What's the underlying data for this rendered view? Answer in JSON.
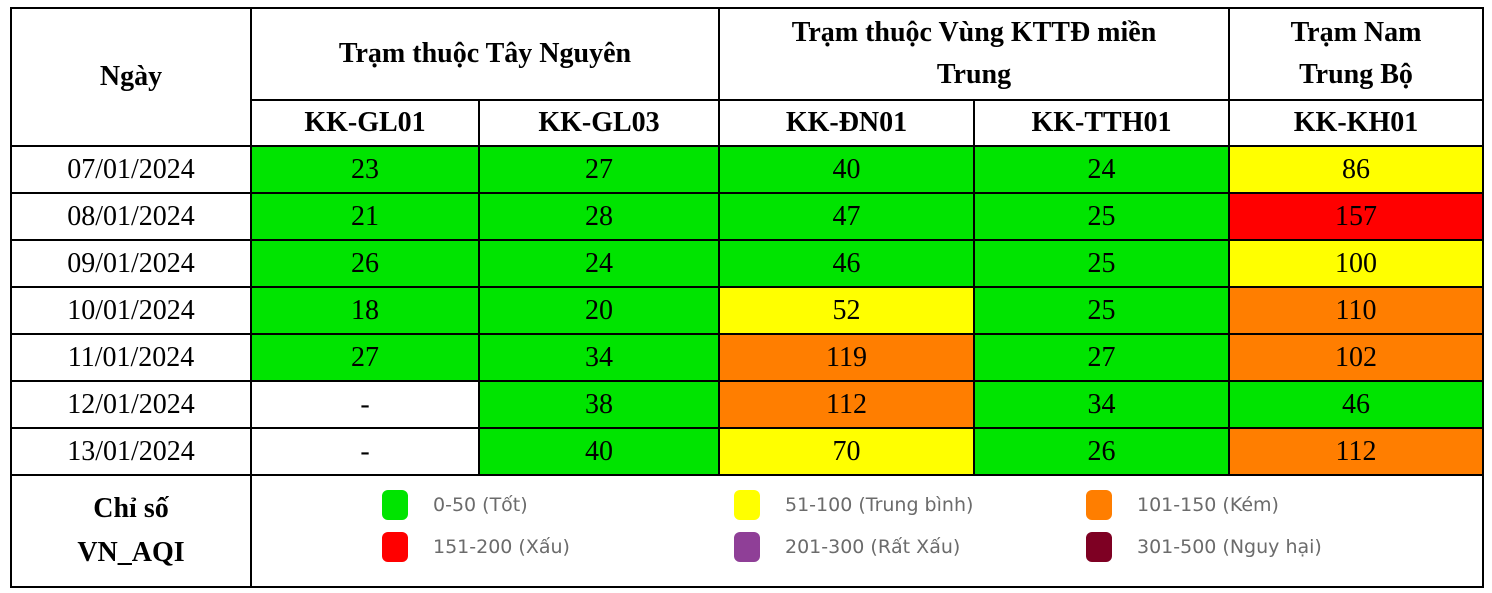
{
  "colors": {
    "good": "#00e400",
    "moderate": "#ffff00",
    "poor": "#ff7e00",
    "bad": "#ff0000",
    "very_bad": "#8f3f97",
    "hazardous": "#7e0023",
    "empty": "#ffffff"
  },
  "header": {
    "date_label": "Ngày",
    "groups": [
      {
        "label": "Trạm thuộc Tây Nguyên"
      },
      {
        "label": "Trạm thuộc Vùng KTTĐ miền Trung"
      },
      {
        "label": "Trạm Nam Trung Bộ"
      }
    ],
    "stations": [
      "KK-GL01",
      "KK-GL03",
      "KK-ĐN01",
      "KK-TTH01",
      "KK-KH01"
    ]
  },
  "rows": [
    {
      "date": "07/01/2024",
      "values": [
        "23",
        "27",
        "40",
        "24",
        "86"
      ],
      "levels": [
        "good",
        "good",
        "good",
        "good",
        "moderate"
      ]
    },
    {
      "date": "08/01/2024",
      "values": [
        "21",
        "28",
        "47",
        "25",
        "157"
      ],
      "levels": [
        "good",
        "good",
        "good",
        "good",
        "bad"
      ]
    },
    {
      "date": "09/01/2024",
      "values": [
        "26",
        "24",
        "46",
        "25",
        "100"
      ],
      "levels": [
        "good",
        "good",
        "good",
        "good",
        "moderate"
      ]
    },
    {
      "date": "10/01/2024",
      "values": [
        "18",
        "20",
        "52",
        "25",
        "110"
      ],
      "levels": [
        "good",
        "good",
        "moderate",
        "good",
        "poor"
      ]
    },
    {
      "date": "11/01/2024",
      "values": [
        "27",
        "34",
        "119",
        "27",
        "102"
      ],
      "levels": [
        "good",
        "good",
        "poor",
        "good",
        "poor"
      ]
    },
    {
      "date": "12/01/2024",
      "values": [
        "-",
        "38",
        "112",
        "34",
        "46"
      ],
      "levels": [
        "empty",
        "good",
        "poor",
        "good",
        "good"
      ]
    },
    {
      "date": "13/01/2024",
      "values": [
        "-",
        "40",
        "70",
        "26",
        "112"
      ],
      "levels": [
        "empty",
        "good",
        "moderate",
        "good",
        "poor"
      ]
    }
  ],
  "legend": {
    "label_line1": "Chỉ số",
    "label_line2": "VN_AQI",
    "items": [
      {
        "label": "0-50 (Tốt)",
        "color": "#00e400"
      },
      {
        "label": "51-100 (Trung bình)",
        "color": "#ffff00"
      },
      {
        "label": "101-150 (Kém)",
        "color": "#ff7e00"
      },
      {
        "label": "151-200 (Xấu)",
        "color": "#ff0000"
      },
      {
        "label": "201-300 (Rất Xấu)",
        "color": "#8f3f97"
      },
      {
        "label": "301-500 (Nguy hại)",
        "color": "#7e0023"
      }
    ]
  }
}
